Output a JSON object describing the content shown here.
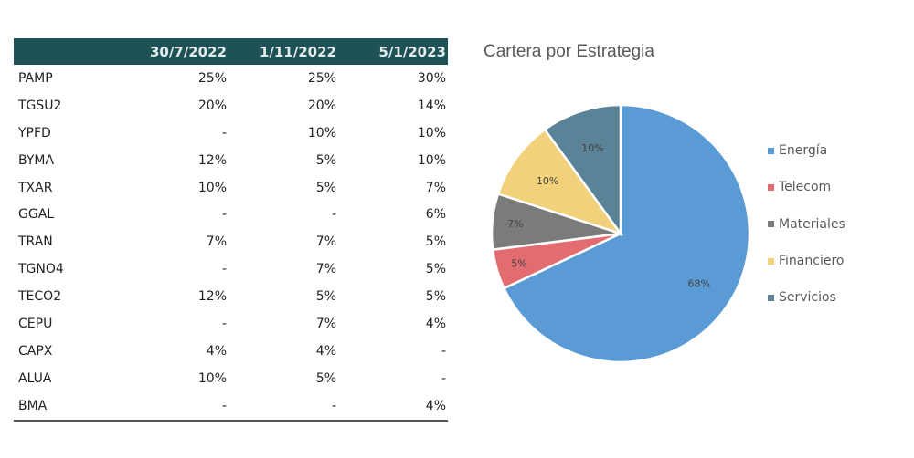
{
  "table": {
    "columns": [
      "",
      "30/7/2022",
      "1/11/2022",
      "5/1/2023"
    ],
    "rows": [
      {
        "ticker": "PAMP",
        "v1": "25%",
        "v2": "25%",
        "v3": "30%"
      },
      {
        "ticker": "TGSU2",
        "v1": "20%",
        "v2": "20%",
        "v3": "14%"
      },
      {
        "ticker": "YPFD",
        "v1": "-",
        "v2": "10%",
        "v3": "10%"
      },
      {
        "ticker": "BYMA",
        "v1": "12%",
        "v2": "5%",
        "v3": "10%"
      },
      {
        "ticker": "TXAR",
        "v1": "10%",
        "v2": "5%",
        "v3": "7%"
      },
      {
        "ticker": "GGAL",
        "v1": "-",
        "v2": "-",
        "v3": "6%"
      },
      {
        "ticker": "TRAN",
        "v1": "7%",
        "v2": "7%",
        "v3": "5%"
      },
      {
        "ticker": "TGNO4",
        "v1": "-",
        "v2": "7%",
        "v3": "5%"
      },
      {
        "ticker": "TECO2",
        "v1": "12%",
        "v2": "5%",
        "v3": "5%"
      },
      {
        "ticker": "CEPU",
        "v1": "-",
        "v2": "7%",
        "v3": "4%"
      },
      {
        "ticker": "CAPX",
        "v1": "4%",
        "v2": "4%",
        "v3": "-"
      },
      {
        "ticker": "ALUA",
        "v1": "10%",
        "v2": "5%",
        "v3": "-"
      },
      {
        "ticker": "BMA",
        "v1": "-",
        "v2": "-",
        "v3": "4%"
      }
    ],
    "header_bg": "#1F5257"
  },
  "chart_data": {
    "type": "pie",
    "title": "Cartera por Estrategia",
    "categories": [
      "Energía",
      "Telecom",
      "Materiales",
      "Financiero",
      "Servicios"
    ],
    "values": [
      68,
      5,
      7,
      10,
      10
    ],
    "labels": [
      "68%",
      "5%",
      "7%",
      "10%",
      "10%"
    ],
    "colors": [
      "#5B9BD5",
      "#E36C70",
      "#7B7B7B",
      "#F1D17A",
      "#5A8398"
    ],
    "start_angle": "12 o'clock, clockwise",
    "legend_position": "right"
  }
}
